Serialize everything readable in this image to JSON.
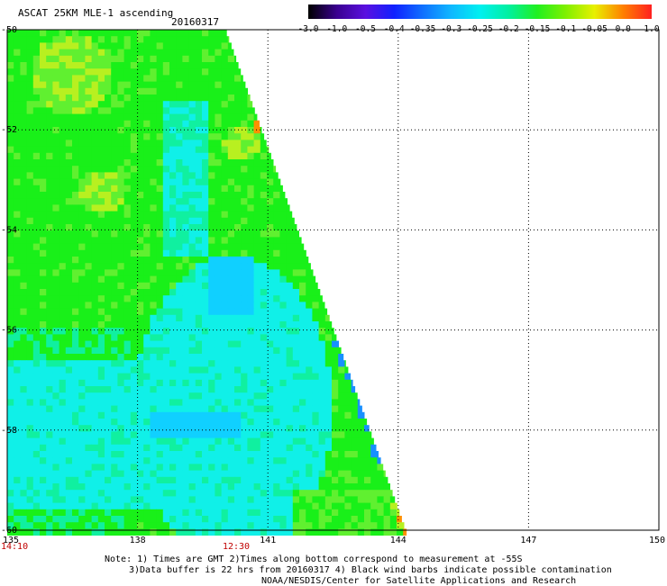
{
  "header": {
    "product_title": "ASCAT 25KM MLE-1 ascending",
    "date": "20160317"
  },
  "colorbar": {
    "labels": [
      "-3.0",
      "-1.0",
      "-0.5",
      "-0.4",
      "-0.35",
      "-0.3",
      "-0.25",
      "-0.2",
      "-0.15",
      "-0.1",
      "-0.05",
      "0.0",
      "1.0"
    ],
    "colors": [
      "#000000",
      "#3a0090",
      "#5a10e0",
      "#1020ff",
      "#1070ff",
      "#10b8ff",
      "#00f0f0",
      "#00f0a0",
      "#20f020",
      "#80f000",
      "#e8f000",
      "#ff8000",
      "#ff2020"
    ]
  },
  "map": {
    "lon_labels": [
      "135",
      "138",
      "141",
      "144",
      "147",
      "150"
    ],
    "lat_labels": [
      "-50",
      "-52",
      "-54",
      "-56",
      "-58",
      "-60"
    ],
    "time_labels": [
      "14:10",
      "12:30"
    ],
    "time_color": "#c00000",
    "swath_colors": {
      "green": "#19f019",
      "light_green": "#60f030",
      "yellow_green": "#b8f020",
      "cyan_green": "#10f0a0",
      "cyan": "#10f0e8",
      "light_blue": "#10d0ff",
      "blue": "#1890ff",
      "orange": "#ff9000"
    }
  },
  "footer": {
    "note_line1": "Note: 1) Times are GMT 2)Times along bottom correspond to measurement at -55S",
    "note_line2": "3)Data buffer is 22 hrs from 20160317 4) Black wind barbs indicate possible contamination",
    "note_line3": "NOAA/NESDIS/Center for Satellite Applications and Research"
  }
}
